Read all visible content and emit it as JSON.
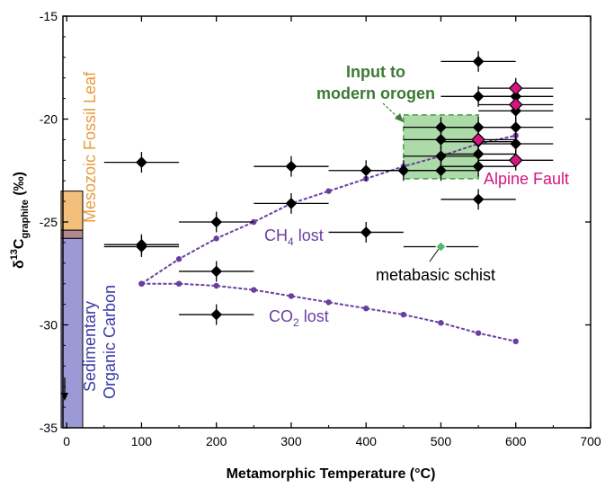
{
  "chart_data": {
    "type": "scatter",
    "xlabel": "Metamorphic Temperature (°C)",
    "ylabel": {
      "main": "δ",
      "sup": "13",
      "sub": "graphite",
      "unit": " (‰)",
      "c": "C"
    },
    "xlim": [
      -5,
      700
    ],
    "ylim": [
      -35,
      -15
    ],
    "x_ticks": [
      0,
      100,
      200,
      300,
      400,
      500,
      600,
      700
    ],
    "y_ticks": [
      -15,
      -20,
      -25,
      -30,
      -35
    ],
    "grid": false,
    "colors": {
      "black": "#000000",
      "magenta": "#d6157f",
      "green_point": "#4cbb6c",
      "curve": "#6a3ea1",
      "orange_bar": "#f2c07a",
      "orange_text": "#e89a3c",
      "blue_bar": "#9c9ad6",
      "blue_text": "#3d3aa8",
      "box_fill": "#9fd39a",
      "box_edge": "#4c9a44",
      "input_text": "#3d7a35"
    },
    "series": [
      {
        "marker": "diamond-black",
        "points": [
          {
            "x": 100,
            "y": -22.1,
            "xerr": 50,
            "yerr": 0.5
          },
          {
            "x": 100,
            "y": -26.1,
            "xerr": 50,
            "yerr": 0.5
          },
          {
            "x": 100,
            "y": -26.2,
            "xerr": 50,
            "yerr": 0.5
          },
          {
            "x": 200,
            "y": -25.0,
            "xerr": 50,
            "yerr": 0.5
          },
          {
            "x": 200,
            "y": -27.4,
            "xerr": 50,
            "yerr": 0.5
          },
          {
            "x": 200,
            "y": -29.5,
            "xerr": 50,
            "yerr": 0.5
          },
          {
            "x": 300,
            "y": -22.3,
            "xerr": 50,
            "yerr": 0.5
          },
          {
            "x": 300,
            "y": -24.1,
            "xerr": 50,
            "yerr": 0.5
          },
          {
            "x": 400,
            "y": -22.5,
            "xerr": 50,
            "yerr": 0.5
          },
          {
            "x": 400,
            "y": -25.5,
            "xerr": 50,
            "yerr": 0.5
          },
          {
            "x": 450,
            "y": -22.5,
            "xerr": 50,
            "yerr": 0.5
          },
          {
            "x": 500,
            "y": -20.4,
            "xerr": 50,
            "yerr": 0.5
          },
          {
            "x": 500,
            "y": -21.0,
            "xerr": 50,
            "yerr": 0.5
          },
          {
            "x": 500,
            "y": -21.8,
            "xerr": 50,
            "yerr": 0.5
          },
          {
            "x": 500,
            "y": -22.5,
            "xerr": 50,
            "yerr": 0.5
          },
          {
            "x": 550,
            "y": -17.2,
            "xerr": 50,
            "yerr": 0.5
          },
          {
            "x": 550,
            "y": -18.9,
            "xerr": 50,
            "yerr": 0.5
          },
          {
            "x": 550,
            "y": -20.4,
            "xerr": 50,
            "yerr": 0.5
          },
          {
            "x": 550,
            "y": -21.1,
            "xerr": 50,
            "yerr": 0.5
          },
          {
            "x": 550,
            "y": -21.7,
            "xerr": 50,
            "yerr": 0.5
          },
          {
            "x": 550,
            "y": -22.3,
            "xerr": 50,
            "yerr": 0.5
          },
          {
            "x": 550,
            "y": -23.9,
            "xerr": 50,
            "yerr": 0.5
          },
          {
            "x": 600,
            "y": -18.9,
            "xerr": 50,
            "yerr": 0.5
          },
          {
            "x": 600,
            "y": -19.6,
            "xerr": 50,
            "yerr": 0.5
          },
          {
            "x": 600,
            "y": -20.4,
            "xerr": 50,
            "yerr": 0.5
          },
          {
            "x": 600,
            "y": -21.2,
            "xerr": 50,
            "yerr": 0.5
          }
        ]
      },
      {
        "marker": "diamond-magenta",
        "points": [
          {
            "x": 600,
            "y": -18.5,
            "xerr": 50,
            "yerr": 0.5
          },
          {
            "x": 600,
            "y": -19.3,
            "xerr": 50,
            "yerr": 0.5
          },
          {
            "x": 550,
            "y": -21.0,
            "xerr": 50,
            "yerr": 0.5
          },
          {
            "x": 600,
            "y": -22.0,
            "xerr": 50,
            "yerr": 0.5
          }
        ]
      },
      {
        "marker": "diamond-green",
        "points": [
          {
            "x": 500,
            "y": -26.2,
            "xerr": 50,
            "yerr": 0
          }
        ]
      }
    ],
    "curves": [
      {
        "x": [
          100,
          150,
          200,
          250,
          300,
          350,
          400,
          450,
          500,
          550,
          600
        ],
        "y": [
          -28.0,
          -26.8,
          -25.8,
          -25.0,
          -24.1,
          -23.5,
          -22.9,
          -22.3,
          -21.8,
          -21.2,
          -20.8
        ]
      },
      {
        "x": [
          100,
          150,
          200,
          250,
          300,
          350,
          400,
          450,
          500,
          550,
          600
        ],
        "y": [
          -28.0,
          -28.0,
          -28.1,
          -28.3,
          -28.6,
          -28.9,
          -29.2,
          -29.5,
          -29.9,
          -30.4,
          -30.8
        ]
      }
    ],
    "bars": [
      {
        "y_top": -23.5,
        "y_bottom": -25.4
      },
      {
        "y_top": -25.4,
        "y_bottom": -25.8
      },
      {
        "y_top": -25.8,
        "y_bottom": -35
      }
    ],
    "box": {
      "x0": 450,
      "x1": 550,
      "y0": -19.8,
      "y1": -22.9
    },
    "annotations": {
      "input_line1": "Input to",
      "input_line2": "modern orogen",
      "ch4_main": "CH",
      "ch4_sub": "4",
      "ch4_rest": " lost",
      "co2_main": "CO",
      "co2_sub": "2",
      "co2_rest": " lost",
      "metabasic": "metabasic schist",
      "alpine": "Alpine Fault",
      "mesozoic": "Mesozoic Fossil Leaf",
      "sed_line1": "Sedimentary",
      "sed_line2": "Organic Carbon"
    }
  }
}
